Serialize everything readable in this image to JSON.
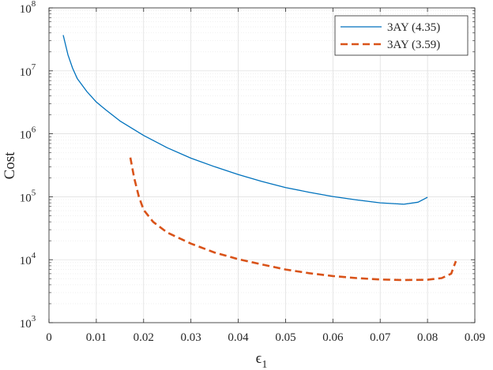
{
  "chart_data": {
    "type": "line",
    "xlabel": "ϵ",
    "xlabel_subscript": "1",
    "ylabel": "Cost",
    "xlim": [
      0,
      0.09
    ],
    "ylim": [
      1000,
      100000000
    ],
    "yscale": "log",
    "x_ticks": [
      {
        "value": 0,
        "label": "0"
      },
      {
        "value": 0.01,
        "label": "0.01"
      },
      {
        "value": 0.02,
        "label": "0.02"
      },
      {
        "value": 0.03,
        "label": "0.03"
      },
      {
        "value": 0.04,
        "label": "0.04"
      },
      {
        "value": 0.05,
        "label": "0.05"
      },
      {
        "value": 0.06,
        "label": "0.06"
      },
      {
        "value": 0.07,
        "label": "0.07"
      },
      {
        "value": 0.08,
        "label": "0.08"
      },
      {
        "value": 0.09,
        "label": "0.09"
      }
    ],
    "y_ticks": [
      {
        "value": 1000,
        "base": "10",
        "exp": "3"
      },
      {
        "value": 10000,
        "base": "10",
        "exp": "4"
      },
      {
        "value": 100000,
        "base": "10",
        "exp": "5"
      },
      {
        "value": 1000000,
        "base": "10",
        "exp": "6"
      },
      {
        "value": 10000000,
        "base": "10",
        "exp": "7"
      },
      {
        "value": 100000000,
        "base": "10",
        "exp": "8"
      }
    ],
    "grid": true,
    "minor_grid": true,
    "legend_position": "top-right",
    "series": [
      {
        "name": "3AY (4.35)",
        "color": "#0072BD",
        "style": "solid",
        "x": [
          0.003,
          0.004,
          0.005,
          0.006,
          0.008,
          0.01,
          0.012,
          0.015,
          0.02,
          0.025,
          0.03,
          0.035,
          0.04,
          0.045,
          0.05,
          0.055,
          0.06,
          0.065,
          0.07,
          0.075,
          0.078,
          0.08
        ],
        "y": [
          37000000,
          18000000,
          11000000,
          7500000,
          4700000,
          3200000,
          2400000,
          1600000,
          940000,
          600000,
          410000,
          300000,
          225000,
          175000,
          140000,
          118000,
          101000,
          89000,
          80000,
          76000,
          82000,
          98000
        ]
      },
      {
        "name": "3AY (3.59)",
        "color": "#D95319",
        "style": "dashed",
        "x": [
          0.0172,
          0.018,
          0.019,
          0.02,
          0.022,
          0.025,
          0.03,
          0.035,
          0.04,
          0.045,
          0.05,
          0.055,
          0.06,
          0.065,
          0.07,
          0.075,
          0.08,
          0.083,
          0.085,
          0.086
        ],
        "y": [
          420000,
          200000,
          100000,
          62000,
          40000,
          27000,
          18000,
          13000,
          10200,
          8400,
          7000,
          6100,
          5500,
          5100,
          4850,
          4750,
          4800,
          5100,
          6000,
          9500
        ]
      }
    ]
  }
}
